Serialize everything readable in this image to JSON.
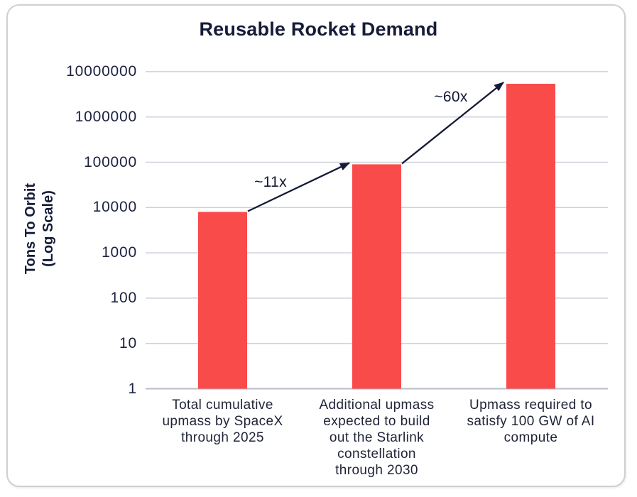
{
  "chart_data": {
    "type": "bar",
    "title": "Reusable Rocket Demand",
    "ylabel_lines": [
      "Tons To Orbit",
      "(Log Scale)"
    ],
    "xlabel": "",
    "yscale": "log",
    "ylim": [
      1,
      10000000
    ],
    "yticks": [
      1,
      10,
      100,
      1000,
      10000,
      100000,
      1000000,
      10000000
    ],
    "grid": true,
    "legend": "none",
    "categories": [
      "Total cumulative upmass by SpaceX through 2025",
      "Additional upmass expected to build out the Starlink constellation through 2030",
      "Upmass required to satisfy 100 GW of AI compute"
    ],
    "category_lines": [
      [
        "Total cumulative",
        "upmass by SpaceX",
        "through 2025"
      ],
      [
        "Additional upmass",
        "expected to build",
        "out the Starlink",
        "constellation",
        "through 2030"
      ],
      [
        "Upmass required to",
        "satisfy 100 GW of AI",
        "compute"
      ]
    ],
    "values": [
      8000,
      90000,
      5400000
    ],
    "annotations": [
      {
        "label": "~11x",
        "from_bar": 0,
        "to_bar": 1
      },
      {
        "label": "~60x",
        "from_bar": 1,
        "to_bar": 2
      }
    ],
    "bar_color": "#FA4B4B"
  },
  "colors": {
    "bar": "#FA4B4B",
    "text": "#181D3A",
    "title_text": "#161B38",
    "grid_line": "#CDD1DB",
    "axis_line": "#B7BCC8",
    "arrow": "#141936",
    "card_border": "#CFCFCF",
    "background": "#FFFFFF"
  }
}
